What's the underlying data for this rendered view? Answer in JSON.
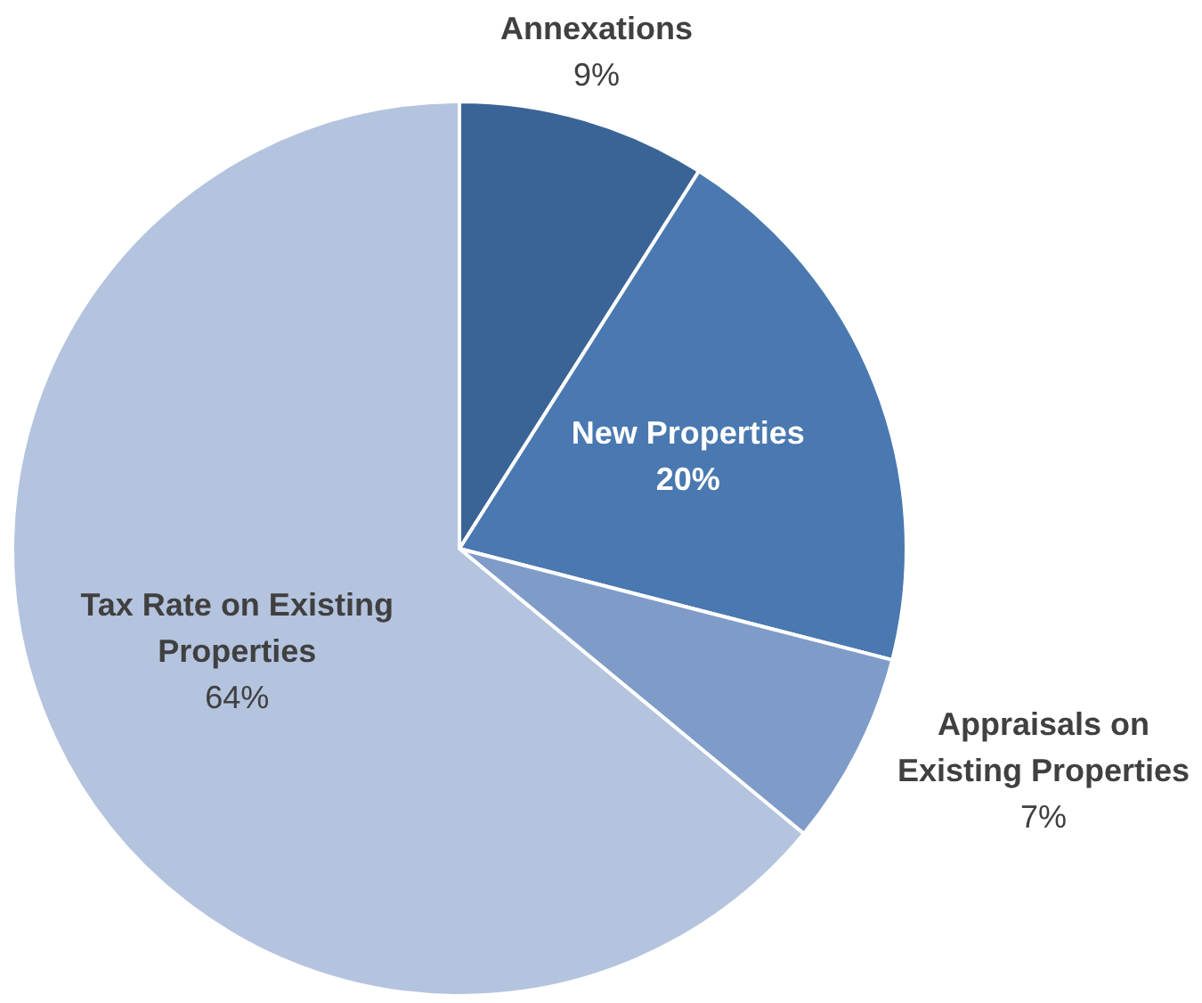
{
  "chart_data": {
    "type": "pie",
    "categories": [
      "Annexations",
      "New Properties",
      "Appraisals on Existing Properties",
      "Tax Rate on Existing Properties"
    ],
    "values": [
      9,
      20,
      7,
      64
    ],
    "colors": [
      "#3b6496",
      "#4a78b0",
      "#7f9cc9",
      "#b4c3de"
    ],
    "value_labels": [
      "9%",
      "20%",
      "7%",
      "64%"
    ],
    "legend": false
  }
}
